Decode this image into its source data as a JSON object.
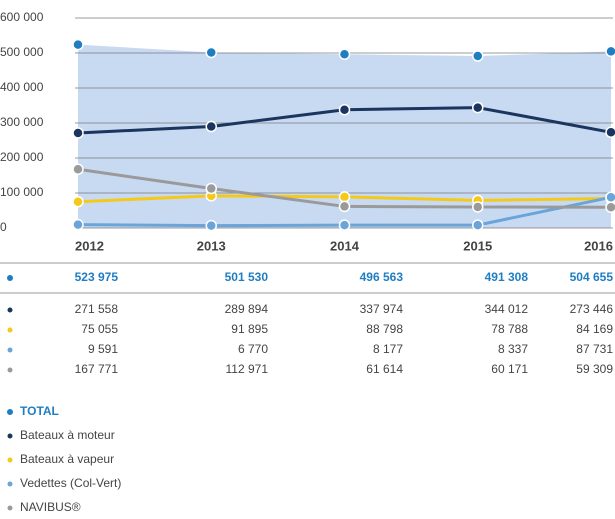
{
  "chart_data": {
    "type": "line",
    "categories": [
      "2012",
      "2013",
      "2014",
      "2015",
      "2016"
    ],
    "ylim": [
      0,
      600000
    ],
    "yticks": [
      0,
      {
        "value": 100000,
        "label": "100 000"
      },
      {
        "value": 200000,
        "label": "200 000"
      },
      {
        "value": 300000,
        "label": "300 000"
      },
      {
        "value": 400000,
        "label": "400 000"
      },
      {
        "value": 500000,
        "label": "500 000"
      },
      {
        "value": 600000,
        "label": "600 000"
      }
    ],
    "grid": true,
    "series": [
      {
        "name": "TOTAL",
        "color": "#1f7dc2",
        "area_color": "#c8daf2",
        "values": [
          523975,
          501530,
          496563,
          491308,
          504655
        ],
        "value_labels": [
          "523 975",
          "501 530",
          "496 563",
          "491 308",
          "504 655"
        ]
      },
      {
        "name": "Bateaux à moteur",
        "color": "#1c355e",
        "values": [
          271558,
          289894,
          337974,
          344012,
          273446
        ],
        "value_labels": [
          "271 558",
          "289 894",
          "337 974",
          "344 012",
          "273 446"
        ]
      },
      {
        "name": "Bateaux à vapeur",
        "color": "#f5c91a",
        "values": [
          75055,
          91895,
          88798,
          78788,
          84169
        ],
        "value_labels": [
          "75 055",
          "91 895",
          "88 798",
          "78 788",
          "84 169"
        ]
      },
      {
        "name": "Vedettes (Col-Vert)",
        "color": "#6ba4d8",
        "values": [
          9591,
          6770,
          8177,
          8337,
          87731
        ],
        "value_labels": [
          "9 591",
          "6 770",
          "8 177",
          "8 337",
          "87 731"
        ]
      },
      {
        "name": "NAVIBUS®",
        "color": "#9a9a9a",
        "values": [
          167771,
          112971,
          61614,
          60171,
          59309
        ],
        "value_labels": [
          "167 771",
          "112 971",
          "61 614",
          "60 171",
          "59 309"
        ]
      }
    ]
  }
}
